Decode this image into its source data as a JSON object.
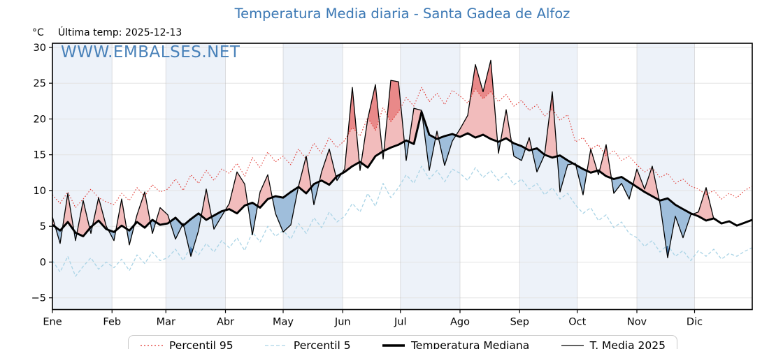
{
  "header": {
    "title": "Temperatura Media diaria - Santa Gadea de Alfoz",
    "unit_label": "°C",
    "last_temp_label": "Última temp: 2025-12-13"
  },
  "watermark": "WWW.EMBALSES.NET",
  "colors": {
    "title_blue": "#3b78b4",
    "watermark_blue": "#3b78b4",
    "p95_red": "#e0302a",
    "p5_lightblue": "#aad4e6",
    "median_black": "#000000",
    "t2025_black": "#000000",
    "fill_light_red": "#f2bcbc",
    "fill_dark_red": "#e98989",
    "fill_light_blue": "#9fbedb",
    "fill_dark_blue": "#3f6fa6",
    "month_band": "#edf2f9",
    "grid": "#e3e3e3",
    "spine": "#000000"
  },
  "legend": {
    "items": [
      {
        "label": "Percentil 95",
        "style": "dotted",
        "color": "#e0302a",
        "width": 1.2
      },
      {
        "label": "Percentil 5",
        "style": "dashed",
        "color": "#aad4e6",
        "width": 1.3
      },
      {
        "label": "Temperatura Mediana",
        "style": "solid",
        "color": "#000000",
        "width": 3.4
      },
      {
        "label": "T. Media 2025",
        "style": "solid",
        "color": "#000000",
        "width": 1.3
      }
    ]
  },
  "chart_data": {
    "type": "line",
    "title": "Temperatura Media diaria - Santa Gadea de Alfoz",
    "xlabel": "",
    "ylabel": "°C",
    "x_tick_labels": [
      "Ene",
      "Feb",
      "Mar",
      "Abr",
      "May",
      "Jun",
      "Jul",
      "Ago",
      "Sep",
      "Oct",
      "Nov",
      "Dic"
    ],
    "month_start_days": [
      1,
      32,
      60,
      91,
      121,
      152,
      182,
      213,
      244,
      274,
      305,
      335,
      366
    ],
    "y_ticks": [
      -5,
      0,
      5,
      10,
      15,
      20,
      25,
      30
    ],
    "ylim": [
      -6.64,
      30.58
    ],
    "xlim_days": [
      1,
      366
    ],
    "grid": true,
    "legend_position": "bottom",
    "shaded_months_alternating": true,
    "t2025_last_day": 347,
    "days": [
      1,
      5,
      9,
      13,
      17,
      21,
      25,
      29,
      33,
      37,
      41,
      45,
      49,
      53,
      57,
      61,
      65,
      69,
      73,
      77,
      81,
      85,
      89,
      93,
      97,
      101,
      105,
      109,
      113,
      117,
      121,
      125,
      129,
      133,
      137,
      141,
      145,
      149,
      153,
      157,
      161,
      165,
      169,
      173,
      177,
      181,
      185,
      189,
      193,
      197,
      201,
      205,
      209,
      213,
      217,
      221,
      225,
      229,
      233,
      237,
      241,
      245,
      249,
      253,
      257,
      261,
      265,
      269,
      273,
      277,
      281,
      285,
      289,
      293,
      297,
      301,
      305,
      309,
      313,
      317,
      321,
      325,
      329,
      333,
      337,
      341,
      345,
      349,
      353,
      357,
      361,
      365
    ],
    "series": [
      {
        "name": "Percentil 95",
        "values": [
          9.4,
          8.2,
          9.8,
          7.6,
          8.8,
          10.2,
          9.0,
          8.4,
          8.0,
          9.6,
          8.6,
          10.4,
          9.2,
          10.8,
          9.8,
          10.2,
          11.6,
          10.0,
          12.2,
          11.0,
          12.8,
          11.4,
          13.0,
          12.4,
          13.8,
          12.0,
          14.6,
          13.2,
          15.4,
          14.0,
          14.8,
          13.6,
          15.8,
          14.4,
          16.6,
          15.2,
          17.4,
          16.0,
          17.0,
          18.8,
          17.6,
          20.2,
          18.4,
          21.6,
          19.6,
          21.0,
          23.0,
          21.8,
          24.4,
          22.4,
          23.6,
          22.0,
          24.0,
          23.2,
          22.2,
          24.2,
          22.8,
          23.8,
          22.4,
          23.4,
          21.8,
          22.6,
          21.2,
          22.0,
          20.4,
          21.4,
          19.8,
          20.6,
          16.8,
          17.4,
          15.8,
          16.4,
          14.8,
          15.6,
          14.2,
          14.8,
          13.6,
          12.6,
          13.2,
          11.8,
          12.4,
          11.0,
          11.6,
          10.6,
          10.2,
          9.4,
          10.0,
          8.8,
          9.6,
          9.0,
          10.0,
          10.6
        ]
      },
      {
        "name": "Percentil 5",
        "values": [
          0.2,
          -1.4,
          0.8,
          -2.0,
          -0.6,
          0.6,
          -1.0,
          0.0,
          -0.8,
          0.4,
          -1.2,
          1.0,
          -0.2,
          1.4,
          0.2,
          0.6,
          1.8,
          0.2,
          2.2,
          1.0,
          2.6,
          1.4,
          3.0,
          2.0,
          3.4,
          1.6,
          4.2,
          2.8,
          5.0,
          3.6,
          4.4,
          3.2,
          5.4,
          4.0,
          6.2,
          4.8,
          7.0,
          5.6,
          6.4,
          8.2,
          7.0,
          9.6,
          7.8,
          11.0,
          9.0,
          10.4,
          12.2,
          11.0,
          13.4,
          11.6,
          12.8,
          11.2,
          13.0,
          12.4,
          11.4,
          13.2,
          11.8,
          12.8,
          11.4,
          12.4,
          10.8,
          11.6,
          10.2,
          11.0,
          9.4,
          10.4,
          8.8,
          9.6,
          8.0,
          6.8,
          7.6,
          5.8,
          6.6,
          4.8,
          5.6,
          4.0,
          3.4,
          2.2,
          3.0,
          1.4,
          2.4,
          0.8,
          1.6,
          0.2,
          1.6,
          0.8,
          1.8,
          0.4,
          1.2,
          0.8,
          1.5,
          2.0
        ]
      },
      {
        "name": "Temperatura Mediana",
        "values": [
          5.2,
          4.4,
          5.6,
          4.1,
          3.6,
          4.9,
          5.8,
          4.6,
          4.2,
          5.1,
          4.4,
          5.6,
          4.8,
          5.9,
          5.2,
          5.4,
          6.2,
          5.1,
          6.0,
          6.8,
          5.9,
          6.5,
          7.1,
          7.4,
          6.8,
          7.9,
          8.3,
          7.6,
          8.8,
          9.2,
          9.0,
          9.8,
          10.5,
          9.6,
          10.9,
          11.4,
          10.8,
          12.0,
          12.6,
          13.4,
          14.0,
          13.2,
          14.8,
          15.5,
          16.0,
          16.4,
          17.0,
          16.5,
          21.0,
          17.8,
          17.2,
          17.6,
          17.9,
          17.5,
          18.0,
          17.4,
          17.8,
          17.2,
          16.8,
          17.3,
          16.6,
          16.2,
          15.6,
          15.9,
          15.0,
          14.6,
          14.9,
          14.2,
          13.6,
          13.0,
          12.5,
          12.8,
          12.0,
          11.6,
          11.9,
          11.2,
          10.5,
          9.8,
          9.2,
          8.6,
          8.9,
          8.0,
          7.4,
          6.8,
          6.4,
          5.8,
          6.1,
          5.4,
          5.7,
          5.1,
          5.5,
          5.9
        ]
      },
      {
        "name": "T. Media 2025",
        "values": [
          6.3,
          2.6,
          9.6,
          3.0,
          8.6,
          4.0,
          9.0,
          5.0,
          3.0,
          8.8,
          2.4,
          6.6,
          9.8,
          4.0,
          7.6,
          6.6,
          3.2,
          5.4,
          0.8,
          4.4,
          10.2,
          4.6,
          6.4,
          8.2,
          12.6,
          10.9,
          3.8,
          9.8,
          12.2,
          6.8,
          4.2,
          5.2,
          10.6,
          14.8,
          8.0,
          12.6,
          15.8,
          11.4,
          13.0,
          24.4,
          12.8,
          20.0,
          24.8,
          14.4,
          25.4,
          25.2,
          14.2,
          21.5,
          21.2,
          12.8,
          18.3,
          13.5,
          16.9,
          18.6,
          20.5,
          27.6,
          23.8,
          28.2,
          15.2,
          21.3,
          14.8,
          14.2,
          17.4,
          12.6,
          15.0,
          23.8,
          9.8,
          13.6,
          13.8,
          9.4,
          15.8,
          12.2,
          16.4,
          9.6,
          11.0,
          8.8,
          13.0,
          10.2,
          13.4,
          8.2,
          0.6,
          6.4,
          3.4,
          6.6,
          7.0,
          10.4,
          6.0
        ]
      }
    ],
    "fill_rule": "area between T. Media 2025 and Temperatura Mediana: light red above median, dark red above Percentil 95, light blue below median, dark blue below Percentil 5"
  }
}
